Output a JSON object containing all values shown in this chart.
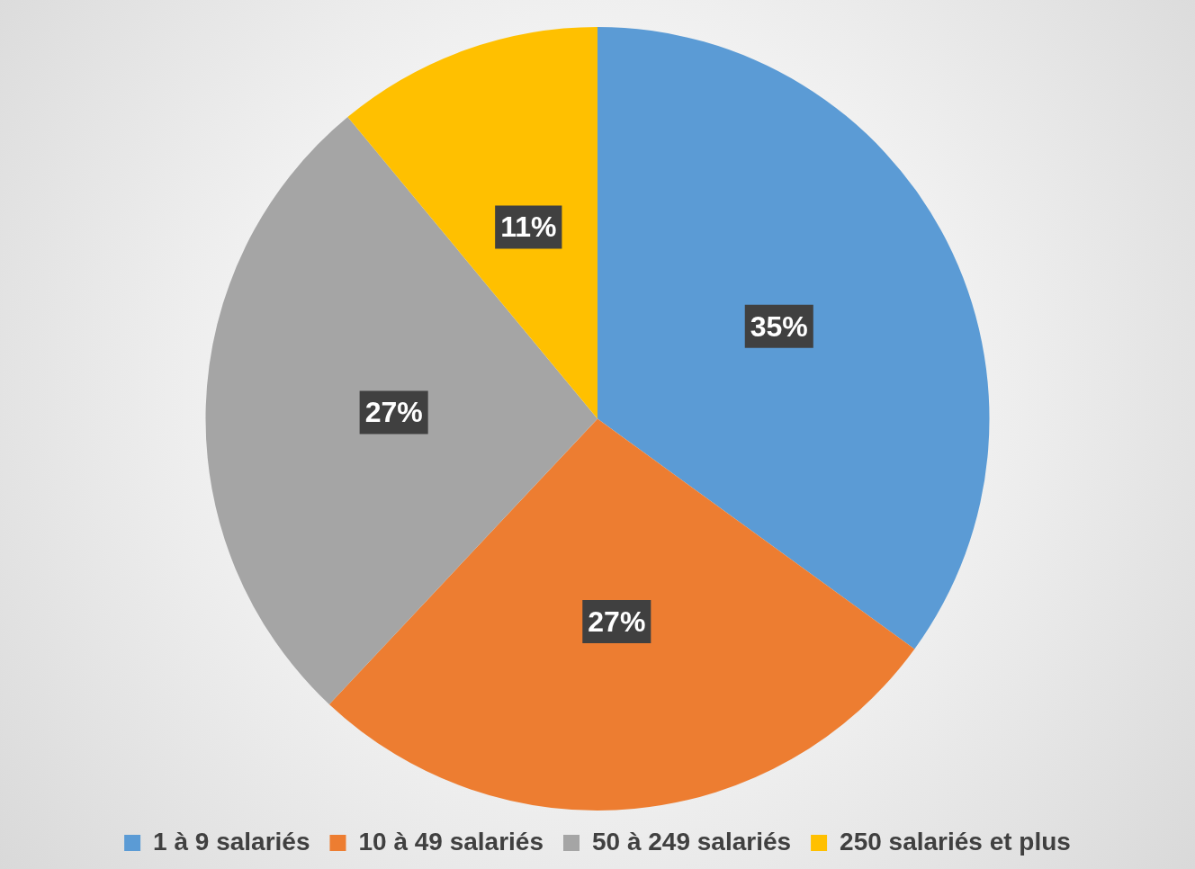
{
  "chart_data": {
    "type": "pie",
    "categories": [
      "1 à 9 salariés",
      "10 à 49 salariés",
      "50 à 249 salariés",
      "250 salariés et plus"
    ],
    "values": [
      35,
      27,
      27,
      11
    ],
    "colors": [
      "#5b9bd5",
      "#ed7d31",
      "#a5a5a5",
      "#ffc000"
    ],
    "value_labels": [
      "35%",
      "27%",
      "27%",
      "11%"
    ],
    "legend": "bottom"
  }
}
